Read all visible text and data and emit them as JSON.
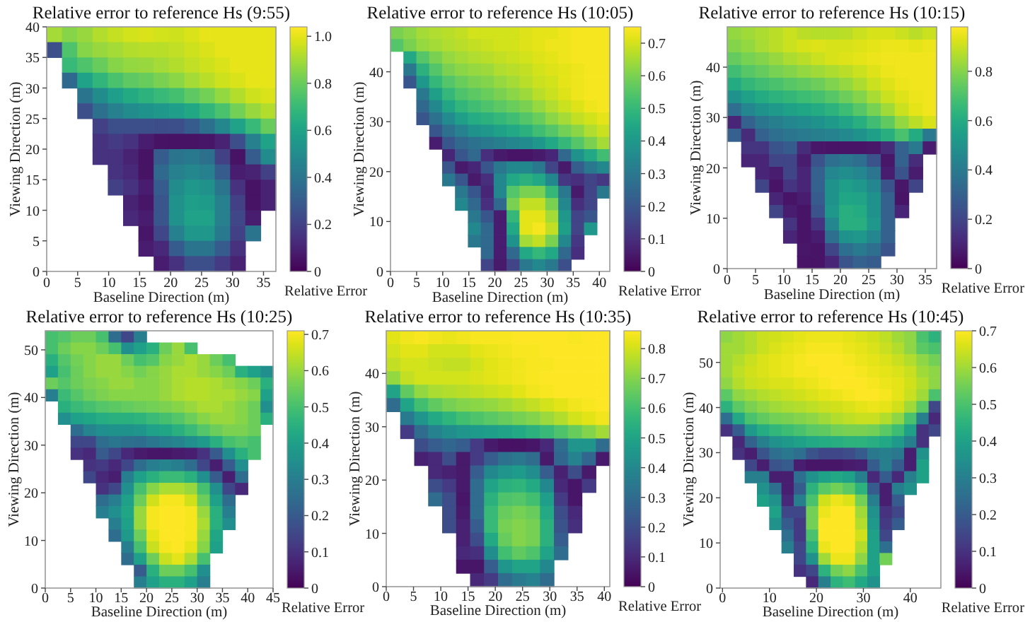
{
  "chart_data": [
    {
      "type": "heatmap",
      "title": "Relative error to reference Hs (9:55)",
      "xlabel": "Baseline Direction (m)",
      "ylabel": "Viewing Direction (m)",
      "clabel": "Relative Error",
      "xlim": [
        0,
        37
      ],
      "ylim": [
        0,
        40
      ],
      "xticks": [
        0,
        5,
        10,
        15,
        20,
        25,
        30,
        35
      ],
      "yticks": [
        0,
        5,
        10,
        15,
        20,
        25,
        30,
        35,
        40
      ],
      "clim": [
        0,
        1.04
      ],
      "cticks": [
        0,
        0.2,
        0.4,
        0.6,
        0.8,
        {
          "value": 1,
          "label": "1.0"
        }
      ],
      "cells": [
        [
          0.9,
          0.85,
          0.88,
          0.92,
          0.95,
          0.97,
          0.98,
          0.97,
          0.96,
          0.98,
          1,
          1,
          1,
          1,
          1
        ],
        [
          0.25,
          0.75,
          0.85,
          0.88,
          0.9,
          0.92,
          0.93,
          0.93,
          0.94,
          0.96,
          0.98,
          1,
          1,
          1,
          1
        ],
        [
          null,
          0.7,
          0.75,
          0.8,
          0.85,
          0.87,
          0.88,
          0.9,
          0.92,
          0.94,
          0.96,
          0.98,
          1,
          1,
          1
        ],
        [
          null,
          0.35,
          0.6,
          0.68,
          0.74,
          0.78,
          0.8,
          0.83,
          0.86,
          0.9,
          0.93,
          0.96,
          0.98,
          1,
          1
        ],
        [
          null,
          null,
          0.4,
          0.5,
          0.58,
          0.63,
          0.67,
          0.7,
          0.73,
          0.78,
          0.82,
          0.87,
          0.92,
          0.96,
          0.98
        ],
        [
          null,
          null,
          0.25,
          0.38,
          0.45,
          0.5,
          0.53,
          0.55,
          0.58,
          0.62,
          0.68,
          0.74,
          0.82,
          0.88,
          0.92
        ],
        [
          null,
          null,
          null,
          0.2,
          0.25,
          0.25,
          0.25,
          0.24,
          0.25,
          0.3,
          0.38,
          0.48,
          0.6,
          0.7,
          0.8
        ],
        [
          null,
          null,
          null,
          0.15,
          0.18,
          0.15,
          0.08,
          0.05,
          0.05,
          0.05,
          0.06,
          0.1,
          0.25,
          0.45,
          0.6
        ],
        [
          null,
          null,
          null,
          0.15,
          0.15,
          0.1,
          0.05,
          0.3,
          0.4,
          0.42,
          0.38,
          0.2,
          0.05,
          0.3,
          0.5
        ],
        [
          null,
          null,
          null,
          null,
          0.15,
          0.12,
          0.05,
          0.35,
          0.45,
          0.48,
          0.45,
          0.3,
          0.08,
          0.1,
          0.2
        ],
        [
          null,
          null,
          null,
          null,
          0.2,
          0.15,
          0.08,
          0.3,
          0.5,
          0.55,
          0.52,
          0.4,
          0.15,
          0.05,
          0.1
        ],
        [
          null,
          null,
          null,
          null,
          null,
          0.1,
          0.06,
          0.28,
          0.52,
          0.58,
          0.57,
          0.45,
          0.2,
          0.05,
          0.1
        ],
        [
          null,
          null,
          null,
          null,
          null,
          0.12,
          0.08,
          0.28,
          0.52,
          0.6,
          0.6,
          0.45,
          0.22,
          0.08,
          null
        ],
        [
          null,
          null,
          null,
          null,
          null,
          null,
          0.06,
          0.22,
          0.45,
          0.55,
          0.55,
          0.42,
          0.2,
          0.4,
          null
        ],
        [
          null,
          null,
          null,
          null,
          null,
          null,
          0.08,
          0.12,
          0.3,
          0.4,
          0.4,
          0.3,
          0.15,
          null,
          null
        ],
        [
          null,
          null,
          null,
          null,
          null,
          null,
          null,
          0.08,
          0.15,
          0.25,
          0.25,
          0.18,
          0.1,
          null,
          null
        ]
      ]
    },
    {
      "type": "heatmap",
      "title": "Relative error to reference Hs (10:05)",
      "xlabel": "Baseline Direction (m)",
      "ylabel": "Viewing Direction (m)",
      "clabel": "Relative Error",
      "xlim": [
        0,
        42
      ],
      "ylim": [
        0,
        49
      ],
      "xticks": [
        0,
        5,
        10,
        15,
        20,
        25,
        30,
        35,
        40
      ],
      "yticks": [
        0,
        10,
        20,
        30,
        40
      ],
      "clim": [
        0,
        0.75
      ],
      "cticks": [
        0,
        0.1,
        0.2,
        0.3,
        0.4,
        0.5,
        0.6,
        0.7
      ],
      "cells": [
        [
          0.6,
          0.62,
          0.65,
          0.66,
          0.67,
          0.68,
          0.7,
          0.7,
          0.7,
          0.7,
          0.71,
          0.72,
          0.72,
          0.73,
          0.74,
          0.74,
          0.74
        ],
        [
          0.55,
          0.6,
          0.63,
          0.65,
          0.66,
          0.67,
          0.68,
          0.69,
          0.7,
          0.7,
          0.71,
          0.72,
          0.73,
          0.73,
          0.74,
          0.74,
          0.74
        ],
        [
          null,
          0.45,
          0.55,
          0.6,
          0.63,
          0.65,
          0.66,
          0.67,
          0.68,
          0.69,
          0.7,
          0.71,
          0.72,
          0.73,
          0.74,
          0.74,
          0.74
        ],
        [
          null,
          0.3,
          0.48,
          0.55,
          0.6,
          0.62,
          0.63,
          0.64,
          0.66,
          0.67,
          0.68,
          0.7,
          0.71,
          0.72,
          0.73,
          0.74,
          0.74
        ],
        [
          null,
          0.2,
          0.4,
          0.5,
          0.55,
          0.58,
          0.6,
          0.61,
          0.63,
          0.65,
          0.67,
          0.69,
          0.7,
          0.72,
          0.73,
          0.74,
          0.74
        ],
        [
          null,
          null,
          0.3,
          0.42,
          0.5,
          0.54,
          0.56,
          0.58,
          0.6,
          0.62,
          0.64,
          0.67,
          0.69,
          0.71,
          0.73,
          0.74,
          0.74
        ],
        [
          null,
          null,
          0.25,
          0.35,
          0.44,
          0.49,
          0.52,
          0.54,
          0.56,
          0.58,
          0.6,
          0.63,
          0.66,
          0.69,
          0.71,
          0.73,
          0.74
        ],
        [
          null,
          null,
          0.2,
          0.28,
          0.36,
          0.42,
          0.46,
          0.48,
          0.5,
          0.52,
          0.55,
          0.58,
          0.62,
          0.65,
          0.68,
          0.7,
          0.72
        ],
        [
          null,
          null,
          null,
          0.2,
          0.28,
          0.33,
          0.38,
          0.4,
          0.43,
          0.45,
          0.48,
          0.52,
          0.55,
          0.59,
          0.62,
          0.66,
          0.69
        ],
        [
          null,
          null,
          null,
          0.06,
          0.2,
          0.25,
          0.28,
          0.3,
          0.32,
          0.34,
          0.36,
          0.4,
          0.45,
          0.5,
          0.55,
          0.6,
          0.65
        ],
        [
          null,
          null,
          null,
          null,
          0.08,
          0.2,
          0.25,
          0.1,
          0.05,
          0.04,
          0.04,
          0.05,
          0.08,
          0.25,
          0.38,
          0.45,
          0.52
        ],
        [
          null,
          null,
          null,
          null,
          0.2,
          0.05,
          0.08,
          0.2,
          0.3,
          0.35,
          0.35,
          0.3,
          0.15,
          0.05,
          0.22,
          0.3,
          0.35
        ],
        [
          null,
          null,
          null,
          null,
          0.3,
          0.2,
          0.05,
          0.1,
          0.35,
          0.45,
          0.48,
          0.45,
          0.35,
          0.12,
          0.1,
          0.15,
          0.12
        ],
        [
          null,
          null,
          null,
          null,
          null,
          0.3,
          0.2,
          0.08,
          0.35,
          0.55,
          0.6,
          0.6,
          0.5,
          0.3,
          0.05,
          0.15,
          0.3
        ],
        [
          null,
          null,
          null,
          null,
          null,
          0.35,
          0.25,
          0.1,
          0.25,
          0.6,
          0.68,
          0.68,
          0.6,
          0.35,
          0.1,
          0.15,
          null
        ],
        [
          null,
          null,
          null,
          null,
          null,
          null,
          0.3,
          0.2,
          0.06,
          0.5,
          0.72,
          0.72,
          0.65,
          0.4,
          0.15,
          0.2,
          null
        ],
        [
          null,
          null,
          null,
          null,
          null,
          null,
          0.35,
          0.25,
          0.06,
          0.45,
          0.72,
          0.74,
          0.68,
          0.42,
          0.15,
          0.4,
          null
        ],
        [
          null,
          null,
          null,
          null,
          null,
          null,
          0.3,
          0.25,
          0.06,
          0.38,
          0.65,
          0.68,
          0.6,
          0.35,
          0.12,
          null,
          null
        ],
        [
          null,
          null,
          null,
          null,
          null,
          null,
          null,
          0.25,
          0.06,
          0.25,
          0.45,
          0.5,
          0.45,
          0.25,
          0.1,
          null,
          null
        ],
        [
          null,
          null,
          null,
          null,
          null,
          null,
          null,
          0.15,
          0.05,
          0.15,
          0.3,
          0.35,
          0.3,
          0.18,
          null,
          null,
          null
        ]
      ]
    },
    {
      "type": "heatmap",
      "title": "Relative error to reference Hs (10:15)",
      "xlabel": "Baseline Direction (m)",
      "ylabel": "Viewing Direction (m)",
      "clabel": "Relative Error",
      "xlim": [
        0,
        37
      ],
      "ylim": [
        0,
        48
      ],
      "xticks": [
        0,
        5,
        10,
        15,
        20,
        25,
        30,
        35
      ],
      "yticks": [
        0,
        10,
        20,
        30,
        40
      ],
      "clim": [
        0,
        0.98
      ],
      "cticks": [
        0,
        0.2,
        0.4,
        0.6,
        0.8
      ],
      "cells": [
        [
          0.82,
          0.84,
          0.86,
          0.88,
          0.9,
          0.88,
          0.87,
          0.87,
          0.88,
          0.9,
          0.92,
          0.92,
          0.9,
          0.88,
          0.9
        ],
        [
          0.8,
          0.82,
          0.85,
          0.88,
          0.9,
          0.92,
          0.93,
          0.92,
          0.92,
          0.93,
          0.94,
          0.95,
          0.95,
          0.94,
          0.95
        ],
        [
          0.75,
          0.78,
          0.8,
          0.83,
          0.86,
          0.88,
          0.9,
          0.92,
          0.93,
          0.94,
          0.95,
          0.96,
          0.96,
          0.96,
          0.96
        ],
        [
          0.68,
          0.72,
          0.75,
          0.78,
          0.8,
          0.82,
          0.84,
          0.86,
          0.88,
          0.9,
          0.93,
          0.95,
          0.96,
          0.96,
          0.96
        ],
        [
          0.6,
          0.65,
          0.68,
          0.7,
          0.72,
          0.74,
          0.76,
          0.79,
          0.82,
          0.86,
          0.9,
          0.93,
          0.95,
          0.96,
          0.96
        ],
        [
          0.5,
          0.56,
          0.6,
          0.63,
          0.65,
          0.67,
          0.69,
          0.72,
          0.76,
          0.8,
          0.85,
          0.9,
          0.93,
          0.95,
          0.96
        ],
        [
          0.35,
          0.45,
          0.5,
          0.53,
          0.56,
          0.58,
          0.6,
          0.63,
          0.67,
          0.72,
          0.78,
          0.84,
          0.9,
          0.94,
          0.96
        ],
        [
          0.1,
          0.3,
          0.38,
          0.42,
          0.45,
          0.47,
          0.5,
          0.53,
          0.57,
          0.62,
          0.68,
          0.74,
          0.82,
          0.88,
          0.92
        ],
        [
          0.3,
          0.12,
          0.3,
          0.35,
          0.38,
          0.4,
          0.42,
          0.43,
          0.46,
          0.5,
          0.55,
          0.62,
          0.7,
          0.6,
          0.4
        ],
        [
          null,
          0.15,
          0.15,
          0.25,
          0.28,
          0.12,
          0.06,
          0.05,
          0.05,
          0.05,
          0.06,
          0.12,
          0.3,
          0.4,
          0.08
        ],
        [
          null,
          0.1,
          0.1,
          0.2,
          0.2,
          0.08,
          0.25,
          0.35,
          0.38,
          0.35,
          0.25,
          0.06,
          0.3,
          0.12,
          null
        ],
        [
          null,
          null,
          0.1,
          0.08,
          0.2,
          0.1,
          0.3,
          0.45,
          0.48,
          0.45,
          0.38,
          0.08,
          0.25,
          0.08,
          null
        ],
        [
          null,
          null,
          0.2,
          0.05,
          0.15,
          0.1,
          0.3,
          0.5,
          0.55,
          0.52,
          0.45,
          0.25,
          0.06,
          0.2,
          null
        ],
        [
          null,
          null,
          null,
          0.1,
          0.05,
          0.08,
          0.28,
          0.5,
          0.58,
          0.57,
          0.5,
          0.3,
          0.05,
          null,
          null
        ],
        [
          null,
          null,
          null,
          0.2,
          0.08,
          0.05,
          0.25,
          0.52,
          0.62,
          0.6,
          0.5,
          0.3,
          0.1,
          null,
          null
        ],
        [
          null,
          null,
          null,
          null,
          0.15,
          0.05,
          0.15,
          0.45,
          0.62,
          0.62,
          0.52,
          0.3,
          null,
          null,
          null
        ],
        [
          null,
          null,
          null,
          null,
          0.1,
          0.05,
          0.08,
          0.35,
          0.5,
          0.52,
          0.45,
          0.3,
          null,
          null,
          null
        ],
        [
          null,
          null,
          null,
          null,
          null,
          0.06,
          0.05,
          0.2,
          0.35,
          0.4,
          0.35,
          0.25,
          null,
          null,
          null
        ],
        [
          null,
          null,
          null,
          null,
          null,
          0.05,
          0.05,
          0.1,
          0.25,
          0.3,
          0.28,
          null,
          null,
          null,
          null
        ]
      ]
    },
    {
      "type": "heatmap",
      "title": "Relative error to reference Hs (10:25)",
      "xlabel": "Baseline Direction (m)",
      "ylabel": "Viewing Direction (m)",
      "clabel": "Relative Error",
      "xlim": [
        0,
        45
      ],
      "ylim": [
        0,
        54
      ],
      "xticks": [
        0,
        5,
        10,
        15,
        20,
        25,
        30,
        35,
        40,
        45
      ],
      "yticks": [
        0,
        10,
        20,
        30,
        40,
        50
      ],
      "clim": [
        0,
        0.71
      ],
      "cticks": [
        0,
        0.1,
        0.2,
        0.3,
        0.4,
        0.5,
        0.6,
        0.7
      ],
      "cells": [
        [
          0.5,
          0.52,
          0.55,
          0.55,
          0.5,
          0.25,
          0.15,
          0.3,
          null,
          null,
          null,
          null,
          null,
          null,
          null,
          null,
          null,
          null
        ],
        [
          0.5,
          0.55,
          0.58,
          0.58,
          0.55,
          0.5,
          0.35,
          0.4,
          0.45,
          0.55,
          0.6,
          0.5,
          null,
          null,
          null,
          null,
          null,
          null
        ],
        [
          0.45,
          0.52,
          0.56,
          0.58,
          0.6,
          0.6,
          0.55,
          0.5,
          0.52,
          0.58,
          0.6,
          0.62,
          0.6,
          0.55,
          0.5,
          null,
          null,
          null
        ],
        [
          0.4,
          0.5,
          0.55,
          0.58,
          0.6,
          0.6,
          0.58,
          0.56,
          0.58,
          0.6,
          0.62,
          0.62,
          0.6,
          0.58,
          0.55,
          0.45,
          0.4,
          0.35
        ],
        [
          0.55,
          0.52,
          0.55,
          0.57,
          0.58,
          0.6,
          0.6,
          0.58,
          0.58,
          0.6,
          0.62,
          0.63,
          0.63,
          0.62,
          0.6,
          0.58,
          0.55,
          0.45
        ],
        [
          0.3,
          0.48,
          0.52,
          0.55,
          0.57,
          0.58,
          0.58,
          0.58,
          0.58,
          0.6,
          0.62,
          0.63,
          0.63,
          0.62,
          0.62,
          0.6,
          0.58,
          0.4
        ],
        [
          null,
          0.45,
          0.48,
          0.5,
          0.52,
          0.53,
          0.54,
          0.55,
          0.56,
          0.57,
          0.58,
          0.6,
          0.62,
          0.62,
          0.6,
          0.58,
          0.55,
          0.35
        ],
        [
          null,
          0.35,
          0.4,
          0.42,
          0.44,
          0.45,
          0.45,
          0.46,
          0.48,
          0.5,
          0.52,
          0.55,
          0.58,
          0.6,
          0.6,
          0.58,
          0.55,
          0.45
        ],
        [
          null,
          null,
          0.25,
          0.32,
          0.35,
          0.36,
          0.36,
          0.37,
          0.4,
          0.42,
          0.45,
          0.48,
          0.52,
          0.55,
          0.57,
          0.57,
          0.55,
          null
        ],
        [
          null,
          null,
          0.15,
          0.15,
          0.25,
          0.28,
          0.26,
          0.25,
          0.28,
          0.3,
          0.32,
          0.35,
          0.38,
          0.45,
          0.5,
          0.52,
          0.5,
          null
        ],
        [
          null,
          null,
          0.1,
          0.08,
          0.2,
          0.15,
          0.08,
          0.05,
          0.04,
          0.04,
          0.05,
          0.06,
          0.1,
          0.2,
          0.35,
          0.45,
          0.5,
          null
        ],
        [
          null,
          null,
          null,
          0.1,
          0.12,
          0.08,
          0.15,
          0.25,
          0.3,
          0.32,
          0.3,
          0.25,
          0.15,
          0.06,
          0.2,
          0.35,
          null,
          null
        ],
        [
          null,
          null,
          null,
          0.15,
          0.08,
          0.06,
          0.3,
          0.4,
          0.45,
          0.48,
          0.48,
          0.45,
          0.35,
          0.2,
          0.06,
          0.25,
          null,
          null
        ],
        [
          null,
          null,
          null,
          null,
          0.1,
          0.15,
          0.35,
          0.5,
          0.58,
          0.62,
          0.62,
          0.6,
          0.5,
          0.35,
          0.15,
          0.08,
          null,
          null
        ],
        [
          null,
          null,
          null,
          null,
          0.25,
          0.3,
          0.4,
          0.55,
          0.66,
          0.7,
          0.7,
          0.66,
          0.55,
          0.4,
          0.25,
          null,
          null,
          null
        ],
        [
          null,
          null,
          null,
          null,
          0.3,
          0.35,
          0.42,
          0.6,
          0.7,
          0.71,
          0.71,
          0.7,
          0.6,
          0.45,
          0.3,
          null,
          null,
          null
        ],
        [
          null,
          null,
          null,
          null,
          null,
          0.3,
          0.4,
          0.6,
          0.7,
          0.71,
          0.71,
          0.7,
          0.62,
          0.45,
          0.35,
          null,
          null,
          null
        ],
        [
          null,
          null,
          null,
          null,
          null,
          0.25,
          0.38,
          0.55,
          0.68,
          0.71,
          0.71,
          0.7,
          0.6,
          0.42,
          null,
          null,
          null,
          null
        ],
        [
          null,
          null,
          null,
          null,
          null,
          null,
          0.3,
          0.5,
          0.65,
          0.7,
          0.71,
          0.68,
          0.58,
          0.4,
          null,
          null,
          null,
          null
        ],
        [
          null,
          null,
          null,
          null,
          null,
          null,
          0.25,
          0.4,
          0.55,
          0.65,
          0.68,
          0.62,
          0.5,
          null,
          null,
          null,
          null,
          null
        ],
        [
          null,
          null,
          null,
          null,
          null,
          null,
          null,
          0.2,
          0.45,
          0.55,
          0.55,
          0.5,
          0.35,
          null,
          null,
          null,
          null,
          null
        ],
        [
          null,
          null,
          null,
          null,
          null,
          null,
          null,
          0.3,
          0.4,
          0.45,
          0.45,
          0.4,
          0.3,
          null,
          null,
          null,
          null,
          null
        ]
      ]
    },
    {
      "type": "heatmap",
      "title": "Relative error to reference Hs (10:35)",
      "xlabel": "Baseline Direction (m)",
      "ylabel": "Viewing Direction (m)",
      "clabel": "Relative Error",
      "xlim": [
        0,
        41
      ],
      "ylim": [
        0,
        48
      ],
      "xticks": [
        0,
        5,
        10,
        15,
        20,
        25,
        30,
        35,
        40
      ],
      "yticks": [
        0,
        10,
        20,
        30,
        40
      ],
      "clim": [
        0,
        0.86
      ],
      "cticks": [
        0,
        0.1,
        0.2,
        0.3,
        0.4,
        0.5,
        0.6,
        0.7,
        0.8
      ],
      "cells": [
        [
          0.82,
          0.84,
          0.85,
          0.84,
          0.83,
          0.84,
          0.85,
          0.85,
          0.85,
          0.86,
          0.86,
          0.86,
          0.86,
          0.85,
          0.86,
          0.86
        ],
        [
          0.8,
          0.82,
          0.82,
          0.8,
          0.8,
          0.8,
          0.82,
          0.83,
          0.84,
          0.85,
          0.85,
          0.86,
          0.86,
          0.86,
          0.86,
          0.86
        ],
        [
          0.78,
          0.8,
          0.8,
          0.79,
          0.78,
          0.78,
          0.8,
          0.82,
          0.83,
          0.84,
          0.85,
          0.85,
          0.86,
          0.86,
          0.86,
          0.86
        ],
        [
          0.72,
          0.78,
          0.8,
          0.8,
          0.8,
          0.8,
          0.81,
          0.82,
          0.83,
          0.84,
          0.85,
          0.86,
          0.86,
          0.86,
          0.86,
          0.86
        ],
        [
          0.5,
          0.65,
          0.72,
          0.75,
          0.76,
          0.77,
          0.78,
          0.79,
          0.8,
          0.82,
          0.84,
          0.85,
          0.86,
          0.86,
          0.86,
          0.86
        ],
        [
          0.3,
          0.5,
          0.6,
          0.65,
          0.68,
          0.7,
          0.71,
          0.72,
          0.74,
          0.76,
          0.78,
          0.8,
          0.82,
          0.84,
          0.85,
          0.86
        ],
        [
          null,
          0.35,
          0.45,
          0.52,
          0.56,
          0.6,
          0.62,
          0.64,
          0.66,
          0.68,
          0.7,
          0.73,
          0.76,
          0.8,
          0.82,
          0.84
        ],
        [
          null,
          0.15,
          0.3,
          0.38,
          0.42,
          0.45,
          0.47,
          0.48,
          0.5,
          0.52,
          0.55,
          0.58,
          0.62,
          0.66,
          0.7,
          0.74
        ],
        [
          null,
          null,
          0.2,
          0.25,
          0.28,
          0.25,
          0.15,
          0.06,
          0.04,
          0.04,
          0.05,
          0.1,
          0.3,
          0.45,
          0.45,
          0.3
        ],
        [
          null,
          null,
          0.08,
          0.1,
          0.2,
          0.06,
          0.15,
          0.25,
          0.32,
          0.34,
          0.3,
          0.06,
          0.28,
          0.38,
          0.28,
          0.06
        ],
        [
          null,
          null,
          null,
          0.1,
          0.08,
          0.06,
          0.25,
          0.4,
          0.45,
          0.47,
          0.42,
          0.25,
          0.08,
          0.2,
          0.06,
          null
        ],
        [
          null,
          null,
          null,
          0.2,
          0.15,
          0.06,
          0.3,
          0.5,
          0.55,
          0.56,
          0.52,
          0.4,
          0.1,
          0.05,
          0.15,
          null
        ],
        [
          null,
          null,
          null,
          0.3,
          0.2,
          0.05,
          0.3,
          0.55,
          0.62,
          0.63,
          0.6,
          0.48,
          0.15,
          0.05,
          null,
          null
        ],
        [
          null,
          null,
          null,
          null,
          0.2,
          0.06,
          0.3,
          0.58,
          0.66,
          0.68,
          0.66,
          0.52,
          0.2,
          0.1,
          null,
          null
        ],
        [
          null,
          null,
          null,
          null,
          0.2,
          0.08,
          0.25,
          0.58,
          0.68,
          0.7,
          0.68,
          0.55,
          0.22,
          0.12,
          null,
          null
        ],
        [
          null,
          null,
          null,
          null,
          null,
          0.08,
          0.2,
          0.52,
          0.66,
          0.7,
          0.68,
          0.55,
          0.25,
          null,
          null,
          null
        ],
        [
          null,
          null,
          null,
          null,
          null,
          0.1,
          0.12,
          0.42,
          0.6,
          0.65,
          0.62,
          0.5,
          0.3,
          null,
          null,
          null
        ],
        [
          null,
          null,
          null,
          null,
          null,
          0.05,
          0.05,
          0.25,
          0.45,
          0.5,
          0.5,
          0.4,
          null,
          null,
          null,
          null
        ],
        [
          null,
          null,
          null,
          null,
          null,
          null,
          0.1,
          0.15,
          0.3,
          0.35,
          0.38,
          0.3,
          null,
          null,
          null,
          null
        ]
      ]
    },
    {
      "type": "heatmap",
      "title": "Relative error to reference Hs (10:45)",
      "xlabel": "Baseline Direction (m)",
      "ylabel": "Viewing Direction (m)",
      "clabel": "Relative Error",
      "xlim": [
        -0.5,
        46.5
      ],
      "ylim": [
        0,
        57
      ],
      "xticks": [
        0,
        10,
        20,
        30,
        40
      ],
      "yticks": [
        0,
        10,
        20,
        30,
        40,
        50
      ],
      "clim": [
        0,
        0.7
      ],
      "cticks": [
        0,
        0.1,
        0.2,
        0.3,
        0.4,
        0.5,
        0.6,
        0.7
      ],
      "cells": [
        [
          0.58,
          0.6,
          0.62,
          0.64,
          0.65,
          0.66,
          0.67,
          0.68,
          0.68,
          0.68,
          0.67,
          0.66,
          0.65,
          0.63,
          0.6,
          0.58,
          0.5,
          0.45
        ],
        [
          0.6,
          0.6,
          0.62,
          0.64,
          0.66,
          0.67,
          0.68,
          0.69,
          0.69,
          0.69,
          0.68,
          0.67,
          0.66,
          0.64,
          0.62,
          0.58,
          0.52,
          0.5
        ],
        [
          0.6,
          0.62,
          0.64,
          0.66,
          0.67,
          0.68,
          0.69,
          0.7,
          0.7,
          0.7,
          0.69,
          0.68,
          0.67,
          0.66,
          0.64,
          0.62,
          0.58,
          0.55
        ],
        [
          0.6,
          0.63,
          0.65,
          0.66,
          0.67,
          0.68,
          0.69,
          0.69,
          0.7,
          0.7,
          0.7,
          0.69,
          0.68,
          0.67,
          0.66,
          0.64,
          0.6,
          0.58
        ],
        [
          0.58,
          0.62,
          0.64,
          0.65,
          0.66,
          0.66,
          0.67,
          0.68,
          0.69,
          0.7,
          0.7,
          0.7,
          0.69,
          0.68,
          0.67,
          0.65,
          0.62,
          0.58
        ],
        [
          0.52,
          0.58,
          0.6,
          0.62,
          0.63,
          0.64,
          0.65,
          0.66,
          0.67,
          0.68,
          0.69,
          0.7,
          0.7,
          0.69,
          0.67,
          0.64,
          0.6,
          0.5
        ],
        [
          0.45,
          0.52,
          0.56,
          0.58,
          0.6,
          0.61,
          0.62,
          0.63,
          0.64,
          0.65,
          0.66,
          0.67,
          0.68,
          0.67,
          0.65,
          0.6,
          0.52,
          0.15
        ],
        [
          0.25,
          0.42,
          0.5,
          0.53,
          0.55,
          0.56,
          0.57,
          0.58,
          0.6,
          0.62,
          0.63,
          0.64,
          0.64,
          0.62,
          0.58,
          0.5,
          0.3,
          0.08
        ],
        [
          0.1,
          0.2,
          0.38,
          0.43,
          0.46,
          0.48,
          0.5,
          0.52,
          0.53,
          0.55,
          0.56,
          0.56,
          0.55,
          0.52,
          0.48,
          0.4,
          0.1,
          0.15
        ],
        [
          null,
          0.08,
          0.22,
          0.3,
          0.35,
          0.38,
          0.4,
          0.42,
          0.43,
          0.44,
          0.45,
          0.45,
          0.44,
          0.42,
          0.38,
          0.3,
          0.1,
          null
        ],
        [
          null,
          0.1,
          0.06,
          0.18,
          0.25,
          0.28,
          0.25,
          0.18,
          0.15,
          0.15,
          0.16,
          0.2,
          0.28,
          0.3,
          0.28,
          0.06,
          0.35,
          null
        ],
        [
          null,
          null,
          0.15,
          0.06,
          0.18,
          0.2,
          0.06,
          0.04,
          0.04,
          0.04,
          0.05,
          0.06,
          0.2,
          0.3,
          0.2,
          0.06,
          0.4,
          null
        ],
        [
          null,
          null,
          0.3,
          0.3,
          0.06,
          0.06,
          0.25,
          0.35,
          0.4,
          0.42,
          0.4,
          0.3,
          0.08,
          0.2,
          0.08,
          0.3,
          0.4,
          null
        ],
        [
          null,
          null,
          null,
          0.35,
          0.25,
          0.06,
          0.2,
          0.45,
          0.52,
          0.55,
          0.52,
          0.45,
          0.2,
          0.06,
          0.3,
          0.35,
          null,
          null
        ],
        [
          null,
          null,
          null,
          0.4,
          0.35,
          0.08,
          0.3,
          0.5,
          0.65,
          0.68,
          0.66,
          0.55,
          0.3,
          0.06,
          0.2,
          null,
          null,
          null
        ],
        [
          null,
          null,
          null,
          null,
          0.4,
          0.15,
          0.15,
          0.55,
          0.68,
          0.7,
          0.7,
          0.6,
          0.35,
          0.1,
          0.15,
          null,
          null,
          null
        ],
        [
          null,
          null,
          null,
          null,
          0.35,
          0.2,
          0.12,
          0.55,
          0.7,
          0.7,
          0.7,
          0.62,
          0.38,
          0.12,
          0.2,
          null,
          null,
          null
        ],
        [
          null,
          null,
          null,
          null,
          null,
          0.25,
          0.12,
          0.5,
          0.7,
          0.7,
          0.7,
          0.65,
          0.4,
          0.15,
          null,
          null,
          null,
          null
        ],
        [
          null,
          null,
          null,
          null,
          null,
          0.3,
          0.15,
          0.45,
          0.68,
          0.7,
          0.7,
          0.62,
          0.4,
          0.25,
          null,
          null,
          null,
          null
        ],
        [
          null,
          null,
          null,
          null,
          null,
          null,
          0.15,
          0.35,
          0.6,
          0.68,
          0.68,
          0.58,
          0.4,
          0.55,
          null,
          null,
          null,
          null
        ],
        [
          null,
          null,
          null,
          null,
          null,
          null,
          0.1,
          0.15,
          0.45,
          0.55,
          0.58,
          0.5,
          0.4,
          null,
          null,
          null,
          null,
          null
        ],
        [
          null,
          null,
          null,
          null,
          null,
          null,
          null,
          0.08,
          0.3,
          0.45,
          0.48,
          0.42,
          0.35,
          null,
          null,
          null,
          null,
          null
        ]
      ]
    }
  ]
}
